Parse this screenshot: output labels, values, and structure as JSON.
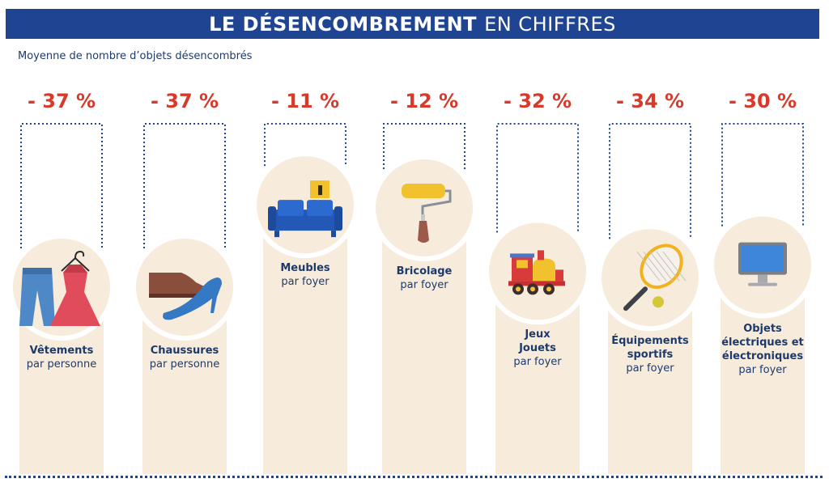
{
  "header": {
    "title_bold": "LE DÉSENCOMBREMENT",
    "title_light": "EN CHIFFRES",
    "subtitle": "Moyenne de nombre d’objets désencombrés"
  },
  "colors": {
    "banner": "#1e4492",
    "accent": "#d63a2c",
    "text": "#1d3a6b",
    "column": "#f7ecdc"
  },
  "chart_data": {
    "type": "bar",
    "title": "LE DÉSENCOMBREMENT EN CHIFFRES",
    "subtitle": "Moyenne de nombre d’objets désencombrés",
    "unit": "%",
    "ylim": [
      -40,
      0
    ],
    "categories": [
      "Vêtements",
      "Chaussures",
      "Meubles",
      "Bricolage",
      "Jeux Jouets",
      "Équipements sportifs",
      "Objets électriques et électroniques"
    ],
    "values": [
      -37,
      -37,
      -11,
      -12,
      -32,
      -34,
      -30
    ],
    "items": [
      {
        "value_label": "- 37 %",
        "value": -37,
        "lines_bold": [
          "Vêtements"
        ],
        "per": "par personne",
        "icon": "clothes-icon"
      },
      {
        "value_label": "- 37 %",
        "value": -37,
        "lines_bold": [
          "Chaussures"
        ],
        "per": "par personne",
        "icon": "shoes-icon"
      },
      {
        "value_label": "- 11 %",
        "value": -11,
        "lines_bold": [
          "Meubles"
        ],
        "per": "par foyer",
        "icon": "sofa-icon"
      },
      {
        "value_label": "- 12 %",
        "value": -12,
        "lines_bold": [
          "Bricolage"
        ],
        "per": "par foyer",
        "icon": "paint-roller-icon"
      },
      {
        "value_label": "- 32 %",
        "value": -32,
        "lines_bold": [
          "Jeux",
          "Jouets"
        ],
        "per": "par foyer",
        "icon": "toy-train-icon"
      },
      {
        "value_label": "- 34 %",
        "value": -34,
        "lines_bold": [
          "Équipements",
          "sportifs"
        ],
        "per": "par foyer",
        "icon": "tennis-racket-icon"
      },
      {
        "value_label": "- 30 %",
        "value": -30,
        "lines_bold": [
          "Objets",
          "électriques et",
          "électroniques"
        ],
        "per": "par foyer",
        "icon": "monitor-icon"
      }
    ]
  }
}
